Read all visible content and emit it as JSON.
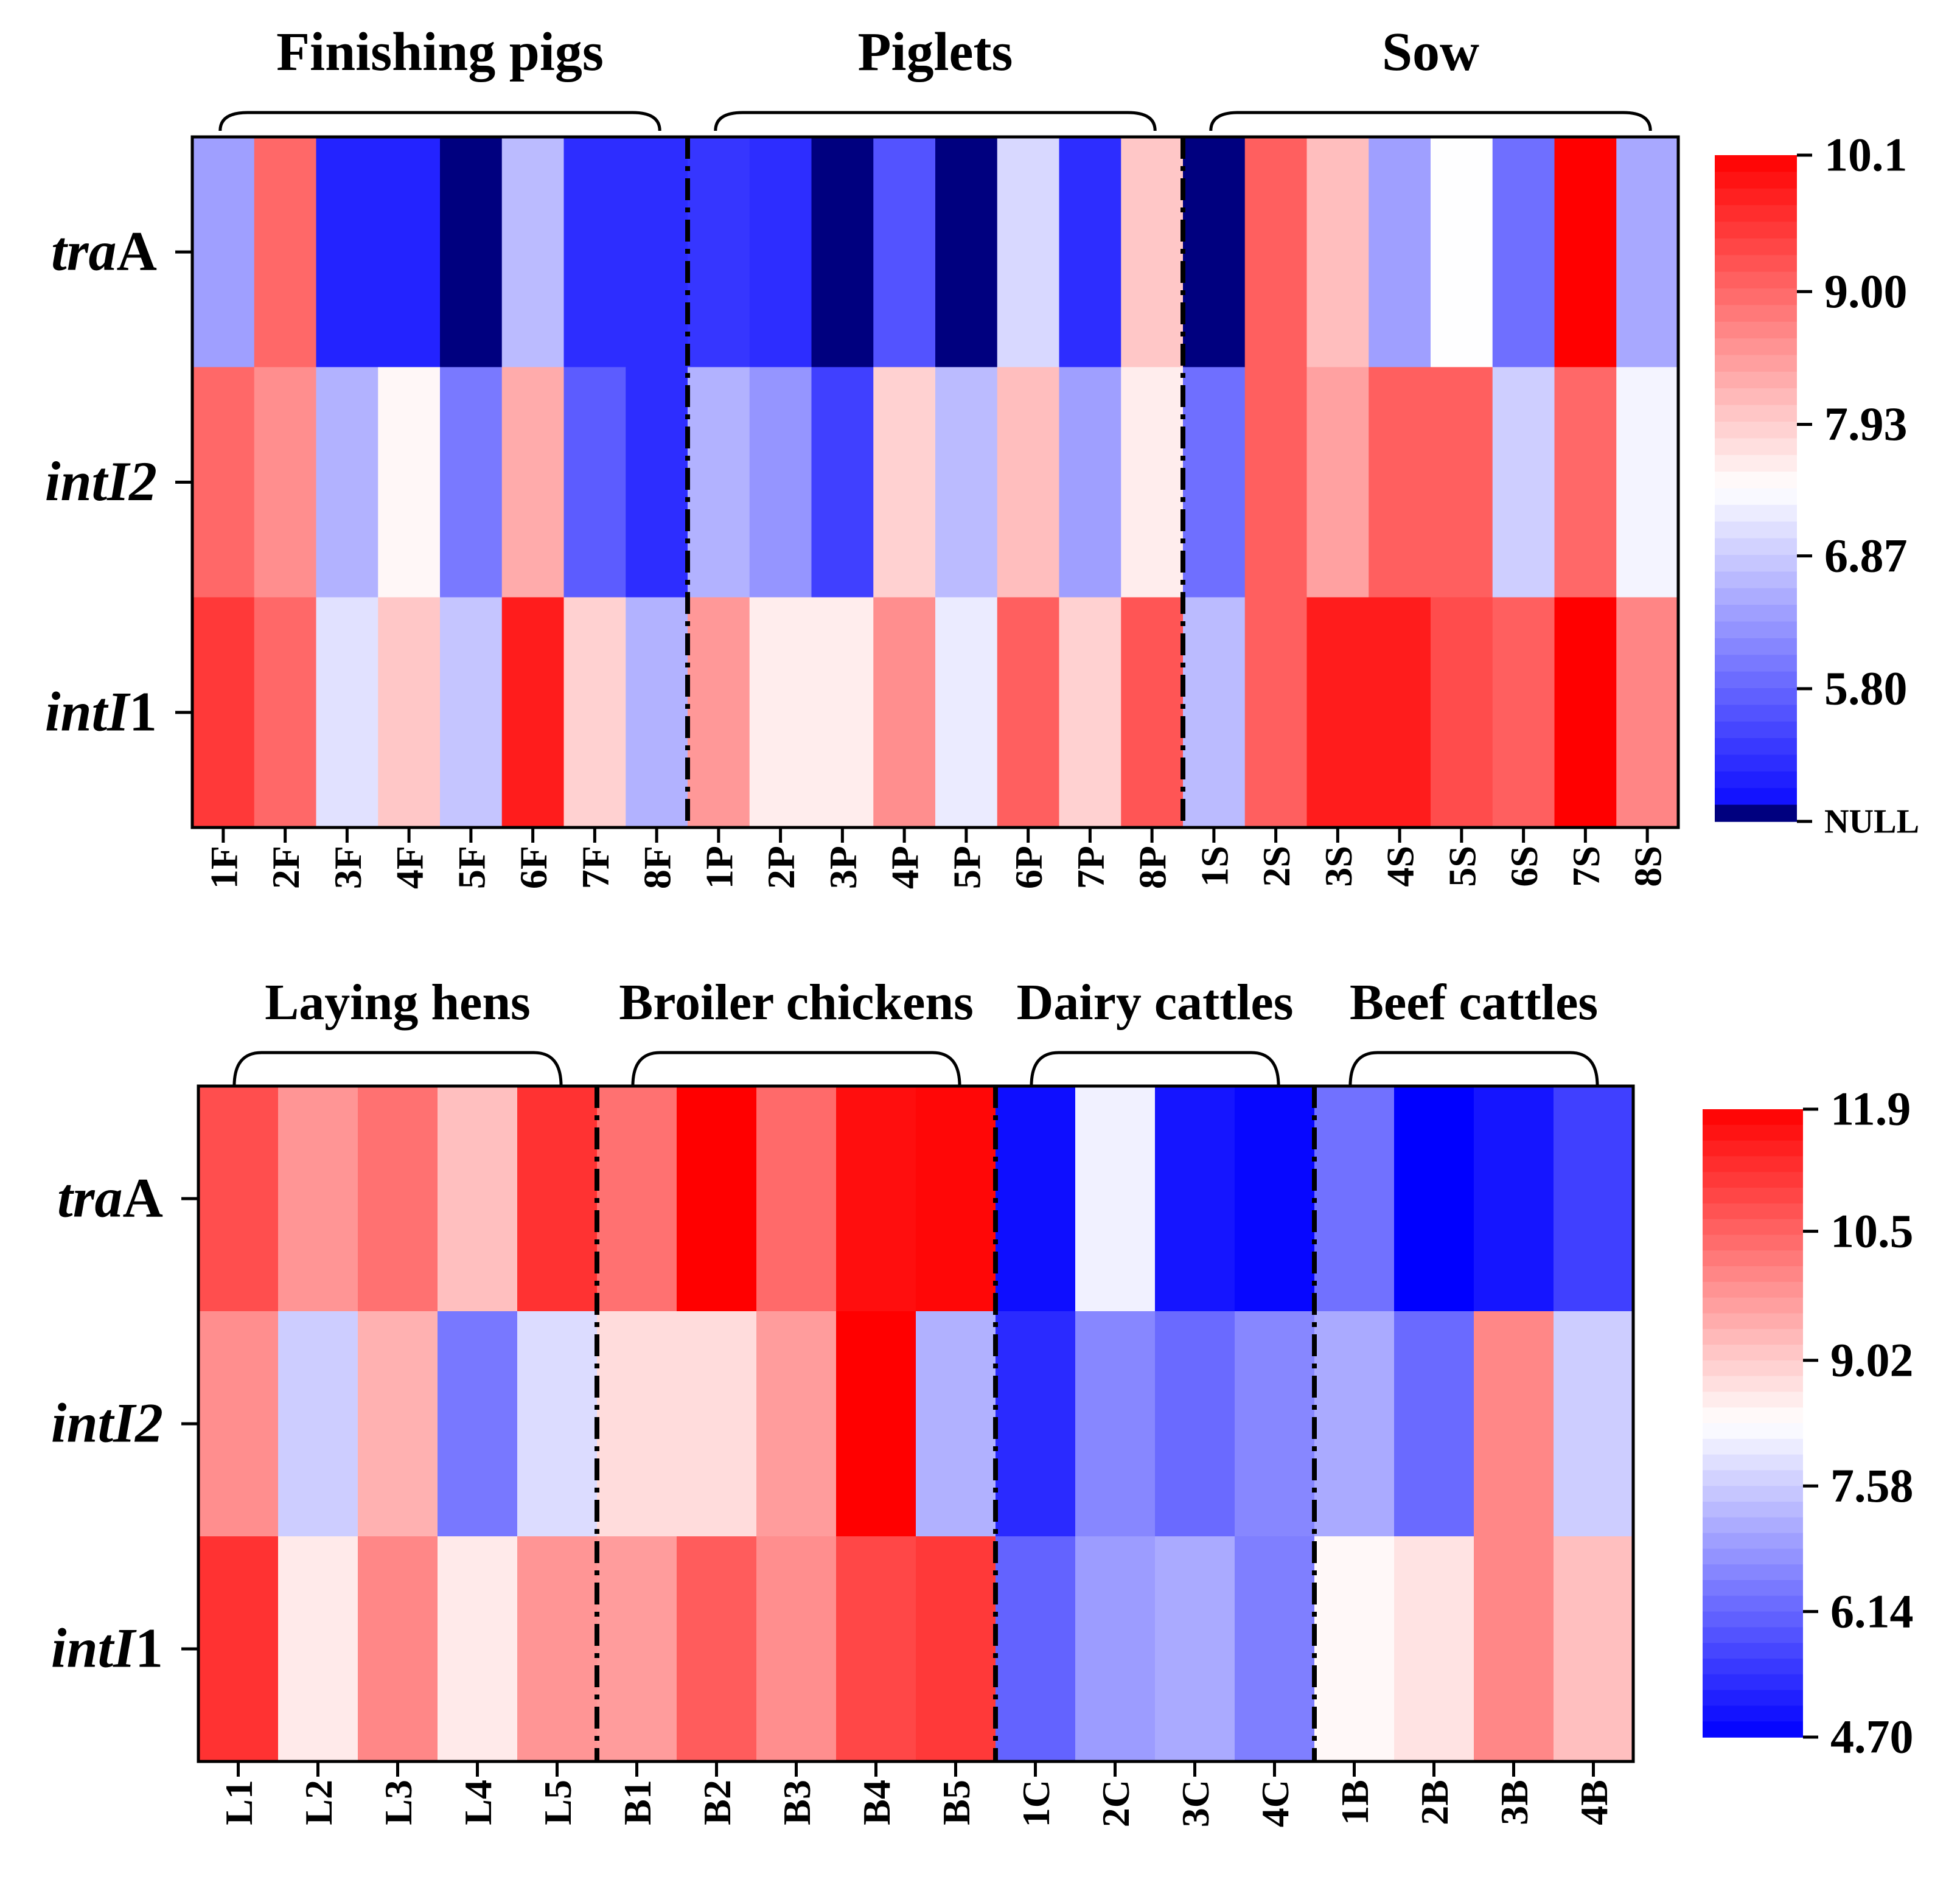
{
  "chart_data": [
    {
      "type": "heatmap",
      "rows": [
        {
          "italic": "tra",
          "roman": "A"
        },
        {
          "italic": "intI2",
          "roman": ""
        },
        {
          "italic": "intI",
          "roman": "1"
        }
      ],
      "columns": [
        "1F",
        "2F",
        "3F",
        "4F",
        "5F",
        "6F",
        "7F",
        "8F",
        "1P",
        "2P",
        "3P",
        "4P",
        "5P",
        "6P",
        "7P",
        "8P",
        "1S",
        "2S",
        "3S",
        "4S",
        "5S",
        "6S",
        "7S",
        "8S"
      ],
      "groups": [
        {
          "label": "Finishing pigs",
          "start": 0,
          "end": 8
        },
        {
          "label": "Piglets",
          "start": 8,
          "end": 16
        },
        {
          "label": "Sow",
          "start": 16,
          "end": 24
        }
      ],
      "values": [
        [
          6.4,
          9.0,
          5.1,
          5.1,
          "NULL",
          6.7,
          5.2,
          5.2,
          5.3,
          5.2,
          "NULL",
          5.6,
          "NULL",
          7.0,
          5.2,
          8.0,
          "NULL",
          9.1,
          8.1,
          6.4,
          7.4,
          5.9,
          10.1,
          6.5
        ],
        [
          9.0,
          8.6,
          6.6,
          7.5,
          6.0,
          8.3,
          5.7,
          5.2,
          6.6,
          6.3,
          5.4,
          7.9,
          6.7,
          8.1,
          6.4,
          7.6,
          5.9,
          9.1,
          8.4,
          9.1,
          9.1,
          6.9,
          9.0,
          7.3
        ],
        [
          9.5,
          9.0,
          7.1,
          8.0,
          6.8,
          9.8,
          7.9,
          6.6,
          8.5,
          7.6,
          7.6,
          8.6,
          7.2,
          9.1,
          7.9,
          9.2,
          6.7,
          9.1,
          9.8,
          9.8,
          9.3,
          9.1,
          10.1,
          8.7
        ]
      ],
      "colorbar": {
        "ticks": [
          "10.1",
          "9.00",
          "7.93",
          "6.87",
          "5.80",
          "NULL"
        ],
        "tick_values": [
          10.1,
          9.0,
          7.93,
          6.87,
          5.8,
          4.73
        ],
        "range": [
          4.73,
          10.1
        ],
        "low_color": "#0000ff",
        "mid_color": "#ffffff",
        "high_color": "#ff0000",
        "null_color": "#00007f"
      },
      "separators": [
        "dash-dot after 8F",
        "dash-dot after 8P"
      ],
      "axis_labels": {
        "x": "",
        "y": ""
      }
    },
    {
      "type": "heatmap",
      "rows": [
        {
          "italic": "tra",
          "roman": "A"
        },
        {
          "italic": "intI2",
          "roman": ""
        },
        {
          "italic": "intI",
          "roman": "1"
        }
      ],
      "columns": [
        "L1",
        "L2",
        "L3",
        "L4",
        "L5",
        "B1",
        "B2",
        "B3",
        "B4",
        "B5",
        "1C",
        "2C",
        "3C",
        "4C",
        "1B",
        "2B",
        "3B",
        "4B"
      ],
      "groups": [
        {
          "label": "Laying hens",
          "start": 0,
          "end": 5
        },
        {
          "label": "Broiler chickens",
          "start": 5,
          "end": 10
        },
        {
          "label": "Dairy cattles",
          "start": 10,
          "end": 14
        },
        {
          "label": "Beef cattles",
          "start": 14,
          "end": 18
        }
      ],
      "values": [
        [
          10.8,
          9.8,
          10.3,
          9.2,
          11.2,
          10.3,
          11.9,
          10.4,
          11.7,
          11.8,
          4.9,
          8.1,
          5.0,
          4.8,
          6.3,
          4.7,
          5.0,
          5.6
        ],
        [
          9.9,
          7.6,
          9.4,
          6.4,
          7.8,
          8.8,
          8.8,
          9.7,
          11.9,
          7.2,
          5.3,
          6.6,
          6.2,
          6.6,
          7.1,
          6.2,
          10.0,
          7.6
        ],
        [
          11.2,
          8.6,
          10.0,
          8.6,
          9.8,
          9.7,
          10.6,
          9.9,
          10.9,
          11.1,
          6.1,
          6.9,
          7.1,
          6.5,
          8.4,
          8.7,
          10.0,
          9.2
        ]
      ],
      "colorbar": {
        "ticks": [
          "11.9",
          "10.5",
          "9.02",
          "7.58",
          "6.14",
          "4.70"
        ],
        "tick_values": [
          11.9,
          10.5,
          9.02,
          7.58,
          6.14,
          4.7
        ],
        "range": [
          4.7,
          11.9
        ],
        "low_color": "#0000ff",
        "mid_color": "#ffffff",
        "high_color": "#ff0000"
      },
      "separators": [
        "dash-dot after L5",
        "dash-dot after B5",
        "dash-dot after 4C"
      ],
      "axis_labels": {
        "x": "",
        "y": ""
      }
    }
  ]
}
